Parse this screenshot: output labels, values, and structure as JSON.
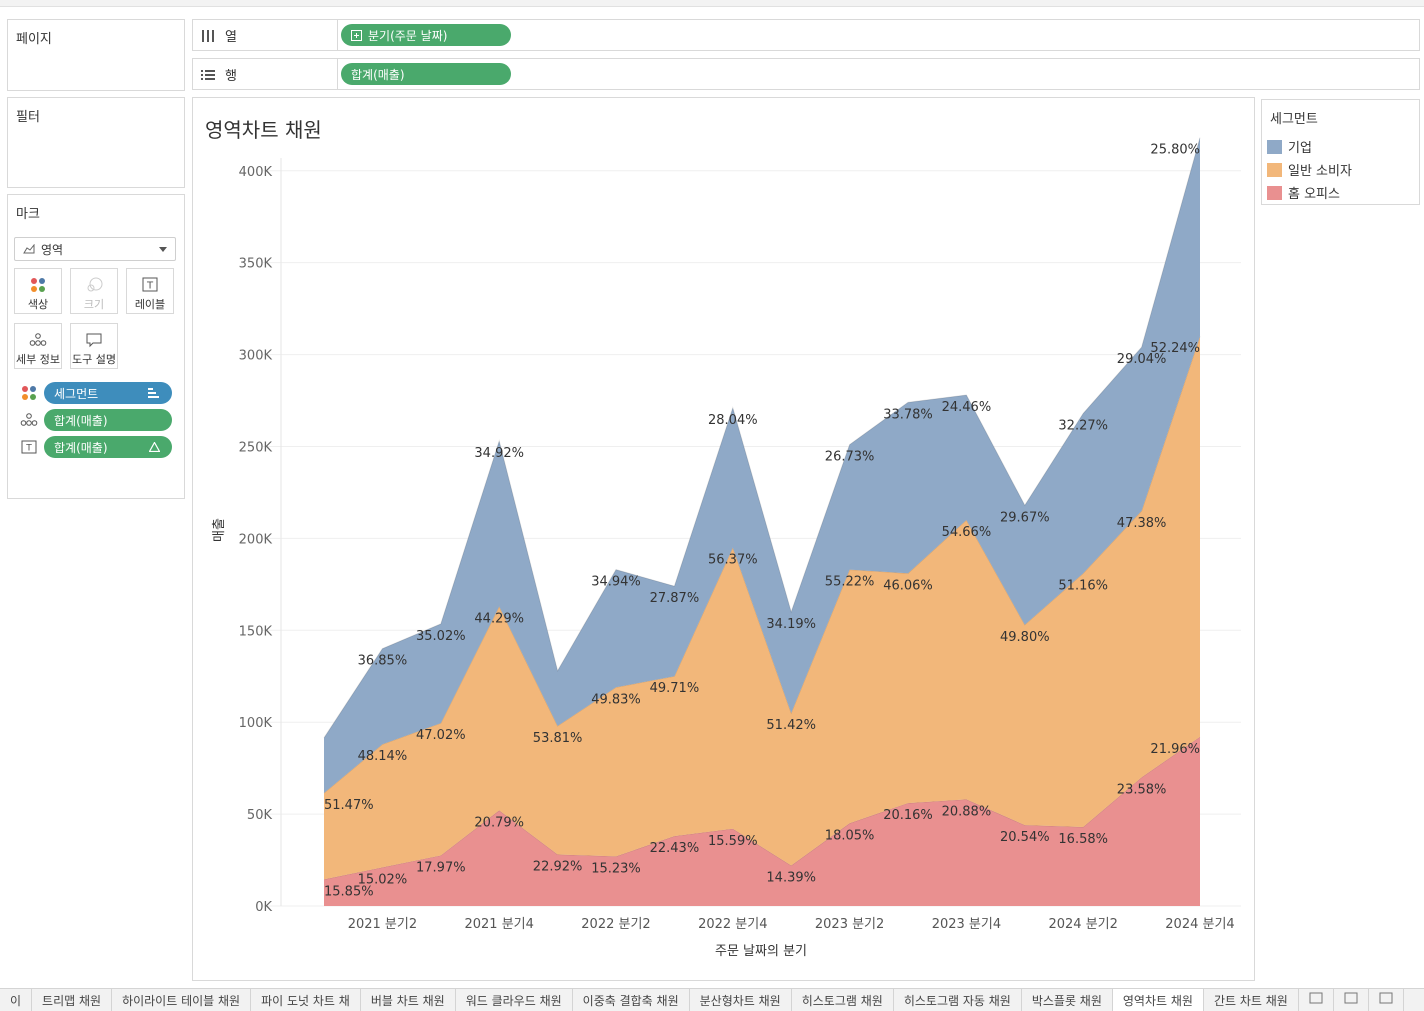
{
  "pages_shelf": {
    "title": "페이지"
  },
  "filter_shelf": {
    "title": "필터"
  },
  "columns_shelf": {
    "label": "열",
    "pill": "분기(주문 날짜)"
  },
  "rows_shelf": {
    "label": "행",
    "pill": "합계(매출)"
  },
  "marks": {
    "title": "마크",
    "mark_type": "영역",
    "buttons": [
      {
        "label": "색상",
        "icon": "color-dots-icon"
      },
      {
        "label": "크기",
        "icon": "size-circles-icon"
      },
      {
        "label": "레이블",
        "icon": "text-label-icon"
      },
      {
        "label": "세부 정보",
        "icon": "detail-dots-icon"
      },
      {
        "label": "도구 설명",
        "icon": "tooltip-icon"
      }
    ],
    "fields": [
      {
        "label": "세그먼트",
        "icon": "color-dots-icon",
        "color": "#3e8dbc"
      },
      {
        "label": "합계(매출)",
        "icon": "detail-dots-icon",
        "color": "#4aa96c"
      },
      {
        "label": "합계(매출)",
        "icon": "text-label-icon",
        "color": "#4aa96c"
      }
    ]
  },
  "legend": {
    "title": "세그먼트",
    "items": [
      {
        "label": "기업",
        "color": "#8fa9c7"
      },
      {
        "label": "일반 소비자",
        "color": "#f2b77a"
      },
      {
        "label": "홈 오피스",
        "color": "#e99090"
      }
    ]
  },
  "chart_title": "영역차트 채원",
  "chart_data": {
    "type": "area",
    "stacked": true,
    "title": "영역차트 채원",
    "xlabel": "주문 날짜의 분기",
    "ylabel": "매출",
    "ylim": [
      0,
      420000
    ],
    "yticks": [
      0,
      50000,
      100000,
      150000,
      200000,
      250000,
      300000,
      350000,
      400000
    ],
    "ytick_labels": [
      "0K",
      "50K",
      "100K",
      "150K",
      "200K",
      "250K",
      "300K",
      "350K",
      "400K"
    ],
    "x": [
      "2021 분기1",
      "2021 분기2",
      "2021 분기3",
      "2021 분기4",
      "2022 분기1",
      "2022 분기2",
      "2022 분기3",
      "2022 분기4",
      "2023 분기1",
      "2023 분기2",
      "2023 분기3",
      "2023 분기4",
      "2024 분기1",
      "2024 분기2",
      "2024 분기3",
      "2024 분기4"
    ],
    "xtick_labels": [
      "2021 분기2",
      "2021 분기4",
      "2022 분기2",
      "2022 분기4",
      "2023 분기2",
      "2023 분기4",
      "2024 분기2",
      "2024 분기4"
    ],
    "grid": true,
    "series": [
      {
        "name": "홈 오피스",
        "color": "#e99090",
        "values": [
          14500,
          21000,
          27500,
          52000,
          28000,
          27000,
          38000,
          42000,
          22000,
          45000,
          56000,
          58000,
          44000,
          43000,
          70000,
          92000
        ],
        "labels": [
          "15.85%",
          "15.02%",
          "17.97%",
          "20.79%",
          "22.92%",
          "15.23%",
          "22.43%",
          "15.59%",
          "14.39%",
          "18.05%",
          "20.16%",
          "20.88%",
          "20.54%",
          "16.58%",
          "23.58%",
          "21.96%"
        ]
      },
      {
        "name": "일반 소비자",
        "color": "#f2b77a",
        "values": [
          47000,
          67000,
          72000,
          111000,
          70000,
          92000,
          87000,
          153000,
          83000,
          138000,
          125000,
          152000,
          109000,
          138000,
          145000,
          218000
        ],
        "labels": [
          "51.47%",
          "48.14%",
          "47.02%",
          "44.29%",
          "53.81%",
          "49.83%",
          "49.71%",
          "56.37%",
          "51.42%",
          "55.22%",
          "46.06%",
          "54.66%",
          "49.80%",
          "51.16%",
          "47.38%",
          "52.24%"
        ]
      },
      {
        "name": "기업",
        "color": "#8fa9c7",
        "values": [
          30000,
          52000,
          54000,
          90000,
          30000,
          64000,
          49000,
          76000,
          55000,
          68000,
          93000,
          68000,
          65000,
          87000,
          89000,
          108000
        ],
        "labels": [
          "",
          "36.85%",
          "35.02%",
          "34.92%",
          "",
          "34.94%",
          "27.87%",
          "28.04%",
          "34.19%",
          "26.73%",
          "33.78%",
          "24.46%",
          "29.67%",
          "32.27%",
          "29.04%",
          "25.80%"
        ]
      }
    ]
  },
  "sheet_tabs": [
    "이",
    "트리맵 채원",
    "하이라이트 테이블 채원",
    "파이 도넛 차트 채",
    "버블 차트 채원",
    "워드 클라우드 채원",
    "이중축 결합축 채원",
    "분산형차트 채원",
    "히스토그램 채원",
    "히스토그램 자동 채원",
    "박스플롯 채원",
    "영역차트 채원",
    "간트 차트 채원"
  ],
  "active_tab": "영역차트 채원"
}
